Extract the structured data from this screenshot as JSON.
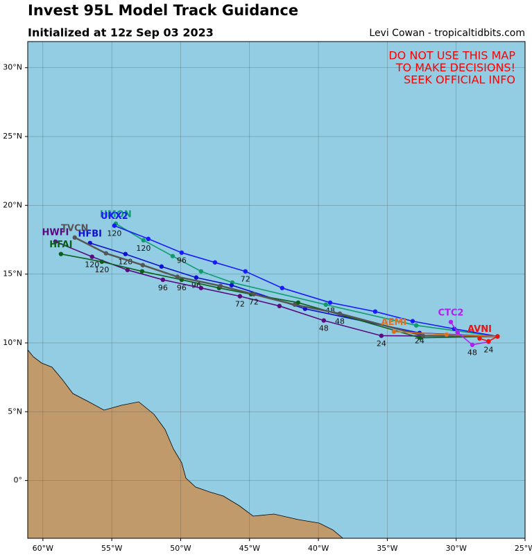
{
  "map": {
    "title": "Invest 95L Model Track Guidance",
    "subtitle": "Initialized at 12z Sep 03 2023",
    "credit": "Levi Cowan - tropicaltidbits.com",
    "warning": [
      "DO NOT USE THIS MAP",
      "TO MAKE DECISIONS!",
      "SEEK OFFICIAL INFO"
    ],
    "lonlim": [
      -61.1,
      -25
    ],
    "latlim": [
      -4.2,
      31.9
    ],
    "lonticks": [
      {
        "value": -60,
        "label": "60°W"
      },
      {
        "value": -55,
        "label": "55°W"
      },
      {
        "value": -50,
        "label": "50°W"
      },
      {
        "value": -45,
        "label": "45°W"
      },
      {
        "value": -40,
        "label": "40°W"
      },
      {
        "value": -35,
        "label": "35°W"
      },
      {
        "value": -30,
        "label": "30°W"
      },
      {
        "value": -25,
        "label": "25°W"
      }
    ],
    "latticks": [
      {
        "value": 0,
        "label": "0°"
      },
      {
        "value": 5,
        "label": "5°N"
      },
      {
        "value": 10,
        "label": "10°N"
      },
      {
        "value": 15,
        "label": "15°N"
      },
      {
        "value": 20,
        "label": "20°N"
      },
      {
        "value": 25,
        "label": "25°N"
      },
      {
        "value": 30,
        "label": "30°N"
      }
    ],
    "grid": true,
    "tracks": [
      {
        "name": "HMON",
        "color": "#0f9b6e",
        "points": [
          {
            "lon": -27.0,
            "lat": 10.47
          },
          {
            "lon": -32.9,
            "lat": 11.27
          },
          {
            "lon": -39.46,
            "lat": 12.78
          },
          {
            "lon": -46.25,
            "lat": 14.39
          },
          {
            "lon": -48.52,
            "lat": 15.2
          },
          {
            "lon": -50.58,
            "lat": 16.31
          },
          {
            "lon": -52.7,
            "lat": 17.46,
            "label": "120"
          },
          {
            "lon": -54.71,
            "lat": 18.67
          }
        ]
      },
      {
        "name": "UKX2",
        "color": "#1a1aff",
        "points": [
          {
            "lon": -27.0,
            "lat": 10.47
          },
          {
            "lon": -30.14,
            "lat": 11.02
          },
          {
            "lon": -33.16,
            "lat": 11.58
          },
          {
            "lon": -35.88,
            "lat": 12.28
          },
          {
            "lon": -39.15,
            "lat": 12.93,
            "label": "48"
          },
          {
            "lon": -42.63,
            "lat": 13.99
          },
          {
            "lon": -45.3,
            "lat": 15.2,
            "label": "72"
          },
          {
            "lon": -47.51,
            "lat": 15.85
          },
          {
            "lon": -49.93,
            "lat": 16.56,
            "label": "96"
          },
          {
            "lon": -52.35,
            "lat": 17.56
          },
          {
            "lon": -54.81,
            "lat": 18.52,
            "label": "120"
          }
        ]
      },
      {
        "name": "HFBI",
        "color": "#1010d0",
        "points": [
          {
            "lon": -27.0,
            "lat": 10.47
          },
          {
            "lon": -32.66,
            "lat": 10.72,
            "label": "24"
          },
          {
            "lon": -40.97,
            "lat": 12.48
          },
          {
            "lon": -46.3,
            "lat": 14.19
          },
          {
            "lon": -48.87,
            "lat": 14.75,
            "label": "96"
          },
          {
            "lon": -51.39,
            "lat": 15.55
          },
          {
            "lon": -54.01,
            "lat": 16.46,
            "label": "120"
          },
          {
            "lon": -56.58,
            "lat": 17.26
          }
        ]
      },
      {
        "name": "HWFI",
        "color": "#5a0a80",
        "points": [
          {
            "lon": -27.0,
            "lat": 10.47
          },
          {
            "lon": -35.43,
            "lat": 10.52,
            "label": "24"
          },
          {
            "lon": -39.61,
            "lat": 11.63,
            "label": "48"
          },
          {
            "lon": -42.83,
            "lat": 12.68
          },
          {
            "lon": -45.7,
            "lat": 13.39,
            "label": "72"
          },
          {
            "lon": -48.52,
            "lat": 13.99
          },
          {
            "lon": -51.29,
            "lat": 14.59,
            "label": "96"
          },
          {
            "lon": -53.86,
            "lat": 15.3
          },
          {
            "lon": -56.43,
            "lat": 16.26,
            "label": "120"
          },
          {
            "lon": -59.09,
            "lat": 17.36
          }
        ]
      },
      {
        "name": "HFAI",
        "color": "#0b5e1a",
        "points": [
          {
            "lon": -27.0,
            "lat": 10.47
          },
          {
            "lon": -32.61,
            "lat": 10.37
          },
          {
            "lon": -41.47,
            "lat": 12.93
          },
          {
            "lon": -44.89,
            "lat": 13.54
          },
          {
            "lon": -47.21,
            "lat": 13.99
          },
          {
            "lon": -49.93,
            "lat": 14.59,
            "label": "96"
          },
          {
            "lon": -52.8,
            "lat": 15.2
          },
          {
            "lon": -55.72,
            "lat": 15.9,
            "label": "120"
          },
          {
            "lon": -58.69,
            "lat": 16.46
          }
        ]
      },
      {
        "name": "TVCN",
        "color": "#555555",
        "points": [
          {
            "lon": -27.0,
            "lat": 10.47
          },
          {
            "lon": -32.41,
            "lat": 10.52
          },
          {
            "lon": -38.45,
            "lat": 12.13,
            "label": "48"
          },
          {
            "lon": -41.72,
            "lat": 12.78
          },
          {
            "lon": -44.69,
            "lat": 13.54,
            "label": "72"
          },
          {
            "lon": -47.11,
            "lat": 14.14
          },
          {
            "lon": -50.23,
            "lat": 14.8
          },
          {
            "lon": -52.75,
            "lat": 15.65
          },
          {
            "lon": -55.42,
            "lat": 16.51
          },
          {
            "lon": -57.69,
            "lat": 17.66
          }
        ]
      },
      {
        "name": "AEMI",
        "color": "#e07020",
        "points": [
          {
            "lon": -27.0,
            "lat": 10.47
          },
          {
            "lon": -30.7,
            "lat": 10.6
          },
          {
            "lon": -34.52,
            "lat": 10.82
          }
        ]
      },
      {
        "name": "CTC2",
        "color": "#b020f0",
        "points": [
          {
            "lon": -27.65,
            "lat": 10.08,
            "label": "24"
          },
          {
            "lon": -28.83,
            "lat": 9.86,
            "label": "48"
          },
          {
            "lon": -29.9,
            "lat": 10.76
          },
          {
            "lon": -30.39,
            "lat": 11.52
          }
        ]
      },
      {
        "name": "AVNI",
        "color": "#ee1111",
        "points": [
          {
            "lon": -27.0,
            "lat": 10.47
          },
          {
            "lon": -27.65,
            "lat": 10.12
          },
          {
            "lon": -28.3,
            "lat": 10.32
          }
        ]
      }
    ]
  }
}
